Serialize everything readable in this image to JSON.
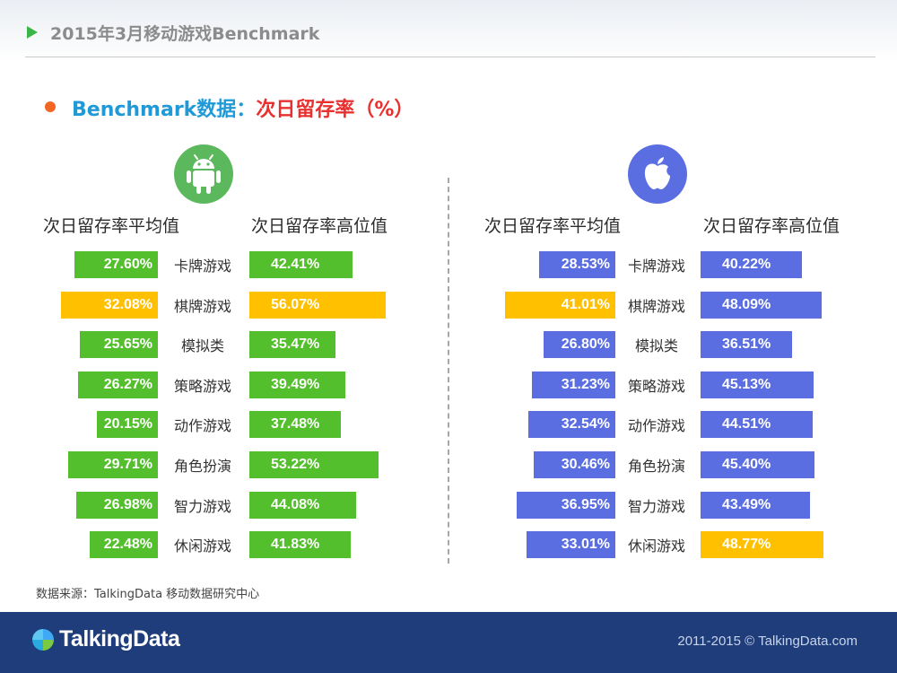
{
  "header": {
    "title": "2015年3月移动游戏Benchmark"
  },
  "section": {
    "title_part1": "Benchmark数据：",
    "title_part2": "次日留存率（%）"
  },
  "colors": {
    "android_green": "#54bf2c",
    "ios_blue": "#5b6ee1",
    "highlight_yellow": "#ffc000",
    "title_blue": "#1f9ad6",
    "title_red": "#e8312f",
    "footer_navy": "#1e3d7a"
  },
  "icons": {
    "android": "android-robot-icon",
    "apple": "apple-logo-icon",
    "brand": "talkingdata-logo-icon"
  },
  "chart_data": [
    {
      "type": "bar",
      "platform": "android",
      "title": "",
      "categories": [
        "卡牌游戏",
        "棋牌游戏",
        "模拟类",
        "策略游戏",
        "动作游戏",
        "角色扮演",
        "智力游戏",
        "休闲游戏"
      ],
      "series": [
        {
          "name": "次日留存率平均值",
          "values": [
            27.6,
            32.08,
            25.65,
            26.27,
            20.15,
            29.71,
            26.98,
            22.48
          ],
          "labels": [
            "27.60%",
            "32.08%",
            "25.65%",
            "26.27%",
            "20.15%",
            "29.71%",
            "26.98%",
            "22.48%"
          ],
          "highlight_index": 1
        },
        {
          "name": "次日留存率高位值",
          "values": [
            42.41,
            56.07,
            35.47,
            39.49,
            37.48,
            53.22,
            44.08,
            41.83
          ],
          "labels": [
            "42.41%",
            "56.07%",
            "35.47%",
            "39.49%",
            "37.48%",
            "53.22%",
            "44.08%",
            "41.83%"
          ],
          "highlight_index": 1
        }
      ]
    },
    {
      "type": "bar",
      "platform": "ios",
      "title": "",
      "categories": [
        "卡牌游戏",
        "棋牌游戏",
        "模拟类",
        "策略游戏",
        "动作游戏",
        "角色扮演",
        "智力游戏",
        "休闲游戏"
      ],
      "series": [
        {
          "name": "次日留存率平均值",
          "values": [
            28.53,
            41.01,
            26.8,
            31.23,
            32.54,
            30.46,
            36.95,
            33.01
          ],
          "labels": [
            "28.53%",
            "41.01%",
            "26.80%",
            "31.23%",
            "32.54%",
            "30.46%",
            "36.95%",
            "33.01%"
          ],
          "highlight_index": 1
        },
        {
          "name": "次日留存率高位值",
          "values": [
            40.22,
            48.09,
            36.51,
            45.13,
            44.51,
            45.4,
            43.49,
            48.77
          ],
          "labels": [
            "40.22%",
            "48.09%",
            "36.51%",
            "45.13%",
            "44.51%",
            "45.40%",
            "43.49%",
            "48.77%"
          ],
          "highlight_index": 7
        }
      ]
    }
  ],
  "source": "数据来源：TalkingData 移动数据研究中心",
  "footer": {
    "brand": "TalkingData",
    "copyright": "2011-2015 © TalkingData.com"
  }
}
